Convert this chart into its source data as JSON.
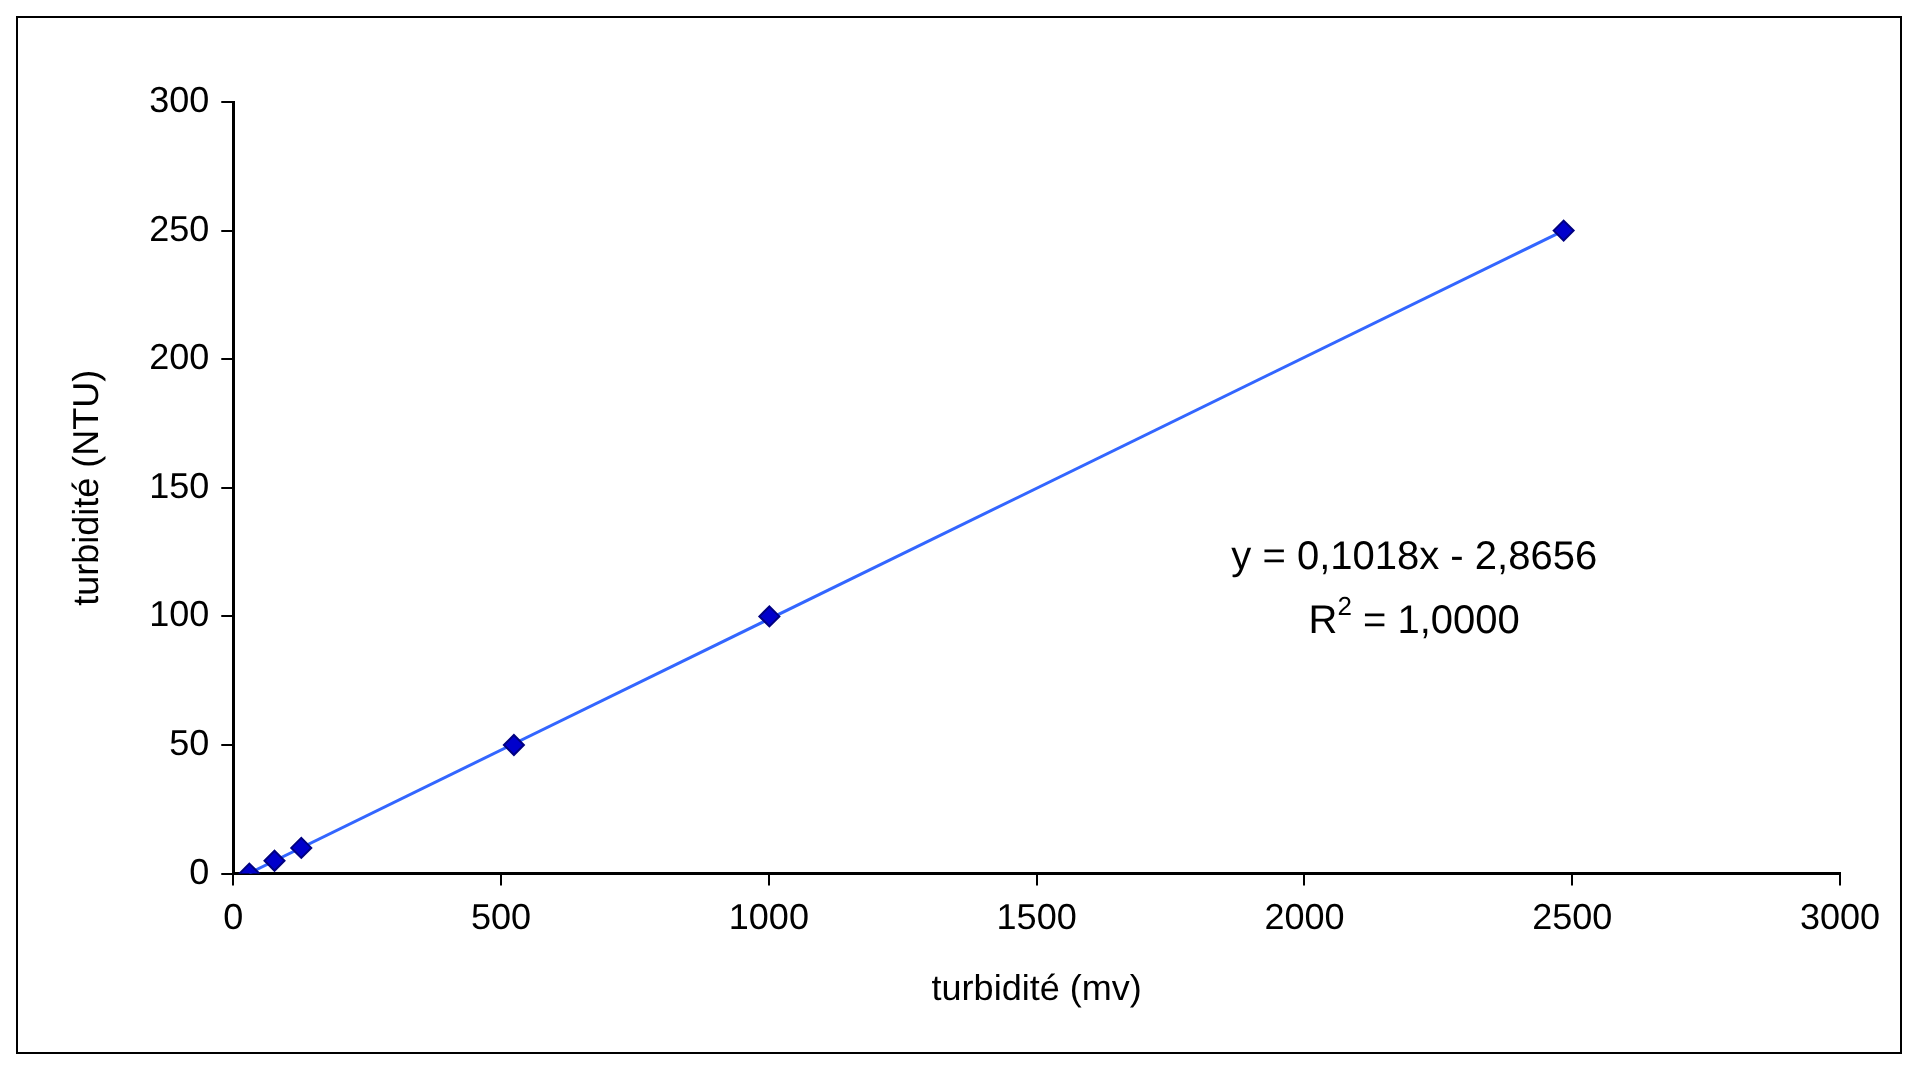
{
  "chart_data": {
    "type": "scatter",
    "xlabel": "turbidité (mv)",
    "ylabel": "turbidité (NTU)",
    "series": [
      {
        "type": "scatter",
        "color": "#0000cc",
        "x": [
          30,
          77,
          127,
          524,
          1001,
          2484
        ],
        "values": [
          0,
          5,
          10,
          50,
          100,
          250
        ],
        "marker": "diamond"
      },
      {
        "type": "line",
        "color": "#3366ff",
        "x": [
          30,
          2484
        ],
        "values": [
          0.2,
          250
        ],
        "marker": "none"
      }
    ],
    "xlim": [
      0,
      3000
    ],
    "xticks": [
      0,
      500,
      1000,
      1500,
      2000,
      2500,
      3000
    ],
    "ylim": [
      0,
      300
    ],
    "yticks": [
      0,
      50,
      100,
      150,
      200,
      250,
      300
    ],
    "grid": false,
    "legend": false,
    "annotations": [
      "y = 0,1018x - 2,8656",
      "R$^{2}$ = 1,0000"
    ]
  }
}
